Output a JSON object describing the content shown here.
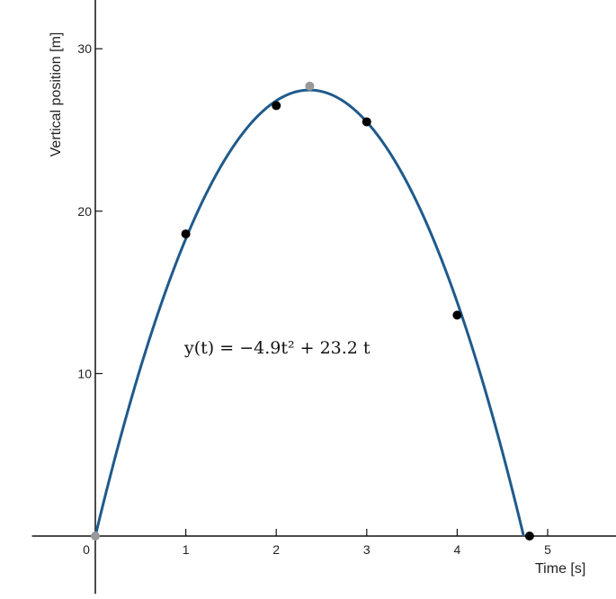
{
  "chart_data": {
    "type": "scatter",
    "xlabel": "Time [s]",
    "ylabel": "Vertical position [m]",
    "xlim": [
      -0.7,
      5.8
    ],
    "ylim": [
      -3.5,
      32.5
    ],
    "x_ticks": [
      0,
      1,
      2,
      3,
      4,
      5
    ],
    "x_tick_labels": [
      "0",
      "1",
      "2",
      "3",
      "4",
      "5"
    ],
    "y_ticks": [
      10,
      20,
      30
    ],
    "y_tick_labels": [
      "10",
      "20",
      "30"
    ],
    "grid": false,
    "annotation": "y(t) = −4.9t² + 23.2 t",
    "fit": {
      "a": -4.9,
      "b": 23.2,
      "c": 0,
      "x_range": [
        0,
        4.735
      ]
    },
    "series": [
      {
        "values": [
          {
            "x": 1,
            "y": 18.6
          },
          {
            "x": 2,
            "y": 26.5
          },
          {
            "x": 3,
            "y": 25.5
          },
          {
            "x": 4,
            "y": 13.6
          },
          {
            "x": 4.8,
            "y": 0
          }
        ]
      },
      {
        "values": [
          {
            "x": 0,
            "y": 0
          },
          {
            "x": 2.37,
            "y": 27.7
          }
        ]
      }
    ],
    "colors": {
      "curve": "#1f5a8c",
      "measured_points": "#000000",
      "special_points": "#999999",
      "axes": "#111111"
    }
  }
}
